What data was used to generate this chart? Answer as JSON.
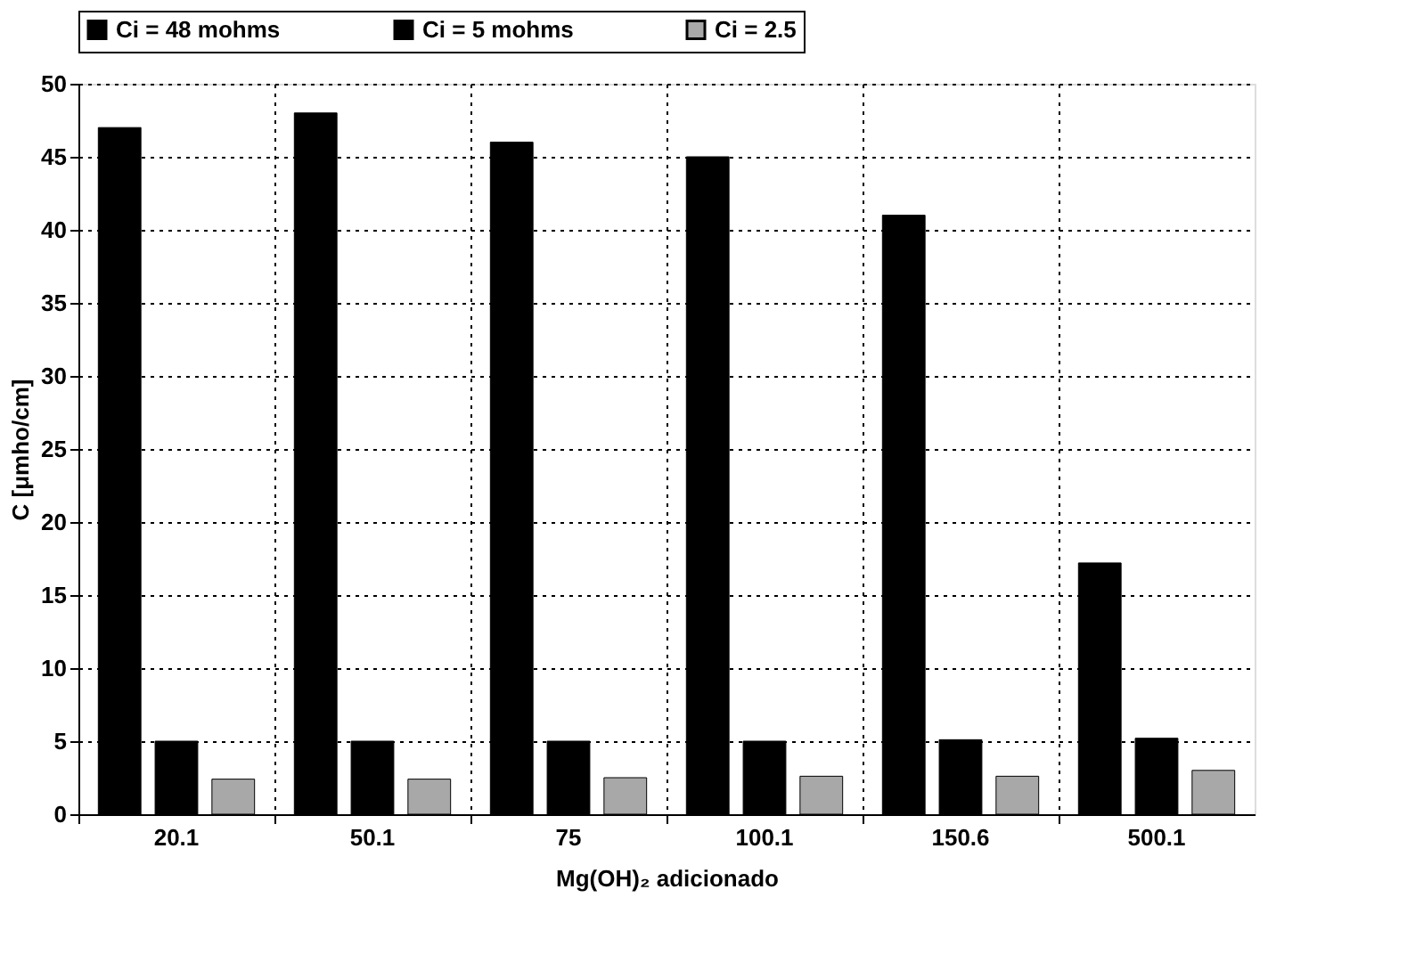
{
  "chart_data": {
    "type": "bar",
    "xlabel": "Mg(OH)₂ adicionado",
    "ylabel": "C [μmho/cm]",
    "categories": [
      "20.1",
      "50.1",
      "75",
      "100.1",
      "150.6",
      "500.1"
    ],
    "series": [
      {
        "name": "Ci = 48 mohms",
        "color": "#000000",
        "values": [
          47,
          48,
          46,
          45,
          41,
          17.2
        ]
      },
      {
        "name": "Ci = 5 mohms",
        "color": "#000000",
        "values": [
          5,
          5,
          5,
          5,
          5.1,
          5.2
        ]
      },
      {
        "name": "Ci = 2.5",
        "color": "#a8a8a8",
        "values": [
          2.4,
          2.4,
          2.5,
          2.6,
          2.6,
          3
        ]
      }
    ],
    "ylim": [
      0,
      50
    ],
    "yticks": [
      0,
      5,
      10,
      15,
      20,
      25,
      30,
      35,
      40,
      45,
      50
    ],
    "grid": true,
    "legend": "top"
  }
}
